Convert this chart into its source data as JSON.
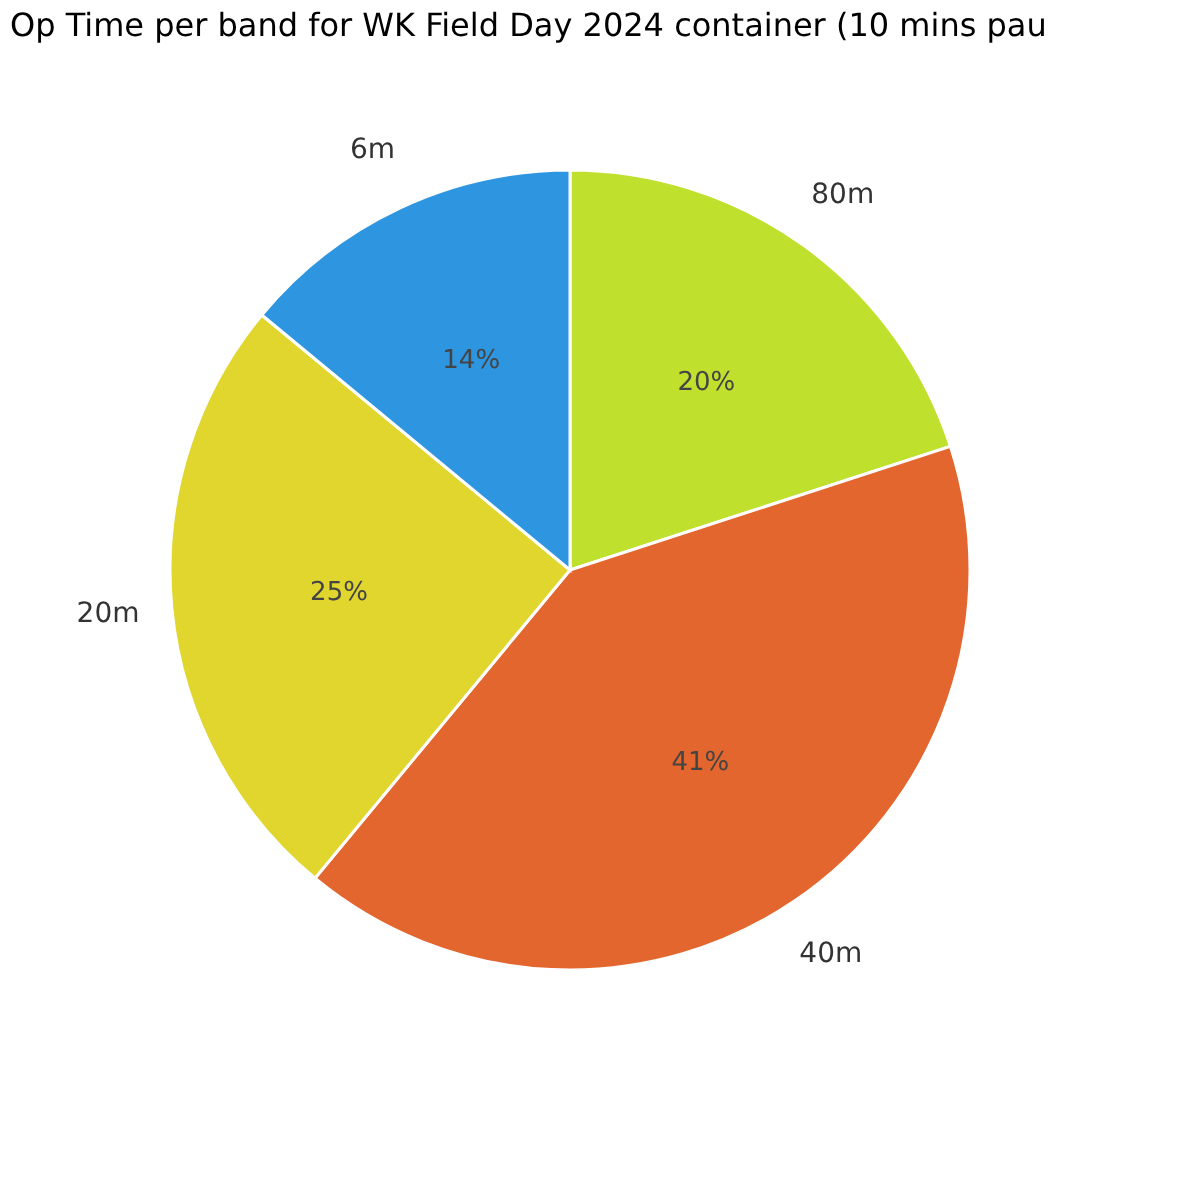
{
  "chart_data": {
    "type": "pie",
    "title": "Op Time per band for WK Field Day 2024 container (10 mins pau",
    "categories": [
      "80m",
      "40m",
      "20m",
      "6m"
    ],
    "values": [
      20,
      41,
      25,
      14
    ],
    "colors": [
      "#bfe12e",
      "#e2662e",
      "#e0d62e",
      "#2e96e0"
    ],
    "value_labels": [
      "20%",
      "41%",
      "25%",
      "14%"
    ],
    "legend": false
  }
}
